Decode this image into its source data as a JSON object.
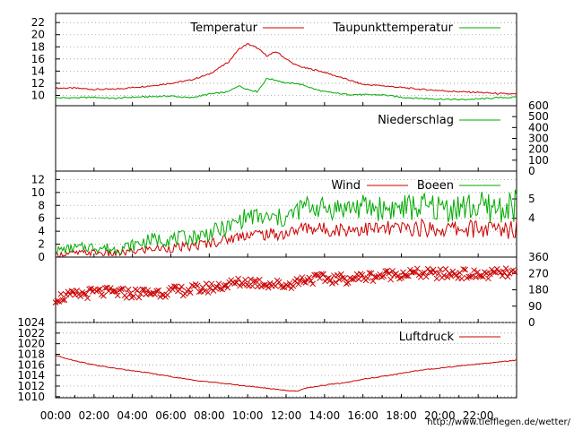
{
  "chart_data": [
    {
      "type": "line",
      "series": [
        {
          "name": "Temperatur",
          "color": "#cc0000",
          "x": [
            0,
            1,
            2,
            3,
            4,
            5,
            6,
            7,
            8,
            9,
            9.5,
            10,
            10.5,
            11,
            11.5,
            12,
            12.5,
            13,
            13.5,
            14,
            15,
            16,
            17,
            18,
            19,
            20,
            21,
            22,
            23,
            24
          ],
          "y": [
            11.2,
            11.2,
            11.0,
            11.0,
            11.3,
            11.6,
            12.0,
            12.5,
            13.5,
            15.5,
            17.5,
            18.5,
            17.8,
            16.5,
            17.2,
            16.0,
            15.0,
            14.5,
            14.2,
            13.8,
            12.8,
            11.8,
            11.6,
            11.3,
            11.0,
            10.8,
            10.6,
            10.5,
            10.3,
            10.2
          ]
        },
        {
          "name": "Taupunkttemperatur",
          "color": "#00aa00",
          "x": [
            0,
            1,
            2,
            3,
            4,
            5,
            6,
            7,
            8,
            9,
            9.5,
            10,
            10.5,
            11,
            11.5,
            12,
            12.5,
            13,
            13.5,
            14,
            15,
            16,
            17,
            18,
            19,
            20,
            21,
            22,
            23,
            24
          ],
          "y": [
            9.6,
            9.6,
            9.7,
            9.5,
            9.7,
            9.8,
            9.9,
            9.6,
            10.2,
            10.6,
            11.6,
            11.0,
            10.6,
            12.8,
            12.5,
            12.0,
            12.0,
            11.6,
            11.0,
            10.6,
            10.2,
            10.1,
            10.1,
            9.7,
            9.5,
            9.4,
            9.3,
            9.4,
            9.6,
            9.7
          ]
        }
      ],
      "yticks": [
        10,
        12,
        14,
        16,
        18,
        20,
        22
      ],
      "ylim": [
        8.3,
        23.5
      ]
    },
    {
      "type": "line",
      "series": [
        {
          "name": "Niederschlag",
          "color": "#00aa00",
          "x": [
            0,
            24
          ],
          "y": [
            0,
            0
          ]
        }
      ],
      "yticks_right": [
        0,
        100,
        200,
        300,
        400,
        500,
        600
      ],
      "ylim": [
        0,
        600
      ]
    },
    {
      "type": "line",
      "series": [
        {
          "name": "Wind",
          "color": "#cc0000",
          "x": [
            0,
            1,
            2,
            3,
            4,
            5,
            6,
            7,
            8,
            9,
            10,
            11,
            12,
            13,
            14,
            15,
            16,
            17,
            18,
            19,
            20,
            21,
            22,
            23,
            24
          ],
          "y": [
            0.4,
            0.6,
            0.7,
            0.5,
            0.8,
            1.3,
            1.4,
            1.6,
            2.2,
            2.8,
            3.6,
            3.5,
            3.6,
            4.6,
            4.3,
            4.3,
            4.4,
            4.3,
            4.4,
            4.5,
            4.3,
            4.4,
            4.4,
            4.2,
            4.5
          ]
        },
        {
          "name": "Boeen",
          "color": "#00aa00",
          "x": [
            0,
            1,
            2,
            3,
            4,
            5,
            6,
            7,
            8,
            9,
            10,
            11,
            12,
            13,
            14,
            15,
            16,
            17,
            18,
            19,
            20,
            21,
            22,
            23,
            24
          ],
          "y": [
            1.0,
            1.4,
            1.6,
            1.2,
            1.8,
            2.7,
            2.8,
            3.0,
            3.7,
            4.6,
            6.4,
            5.9,
            6.0,
            8.0,
            7.5,
            7.6,
            7.8,
            7.5,
            7.6,
            7.8,
            7.6,
            7.7,
            7.7,
            7.5,
            7.9
          ]
        }
      ],
      "yticks": [
        0,
        2,
        4,
        6,
        8,
        10,
        12
      ],
      "yticks_right": [
        4,
        5
      ],
      "ylim": [
        0,
        13.3
      ]
    },
    {
      "type": "scatter",
      "series": [
        {
          "name": "",
          "color": "#cc0000",
          "x": [
            0,
            1,
            2,
            3,
            4,
            5,
            6,
            7,
            8,
            9,
            10,
            11,
            12,
            13,
            14,
            15,
            16,
            17,
            18,
            19,
            20,
            21,
            22,
            23,
            24
          ],
          "y": [
            135,
            150,
            165,
            165,
            160,
            165,
            170,
            180,
            190,
            210,
            225,
            215,
            205,
            240,
            240,
            240,
            250,
            260,
            270,
            270,
            265,
            270,
            260,
            270,
            270
          ]
        }
      ],
      "yticks_right": [
        0,
        90,
        180,
        270,
        360
      ],
      "ylim": [
        0,
        360
      ]
    },
    {
      "type": "line",
      "series": [
        {
          "name": "Luftdruck",
          "color": "#cc0000",
          "x": [
            0,
            1,
            2,
            3,
            4,
            5,
            6,
            7,
            8,
            9,
            10,
            11,
            12,
            12.5,
            13,
            13.5,
            14,
            15,
            16,
            17,
            18,
            19,
            20,
            21,
            22,
            23,
            24
          ],
          "y": [
            1017.8,
            1016.8,
            1016.0,
            1015.4,
            1014.9,
            1014.4,
            1013.8,
            1013.2,
            1012.8,
            1012.4,
            1012.0,
            1011.6,
            1011.2,
            1011.0,
            1011.6,
            1011.9,
            1012.2,
            1012.6,
            1013.3,
            1013.8,
            1014.4,
            1015.0,
            1015.4,
            1015.8,
            1016.2,
            1016.5,
            1016.9
          ]
        }
      ],
      "yticks": [
        1010,
        1012,
        1014,
        1016,
        1018,
        1020,
        1022,
        1024
      ],
      "ylim": [
        1009.8,
        1024
      ]
    }
  ],
  "x_labels": [
    "00:00",
    "02:00",
    "04:00",
    "06:00",
    "08:00",
    "10:00",
    "12:00",
    "14:00",
    "16:00",
    "18:00",
    "20:00",
    "22:00"
  ],
  "url": "http://www.tiefflegen.de/wetter/"
}
